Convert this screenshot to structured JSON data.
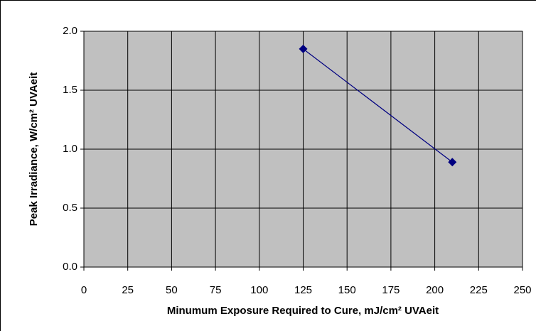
{
  "chart_data": {
    "type": "line",
    "xlabel": "Minumum Exposure Required to Cure, mJ/cm² UVAeit",
    "ylabel": "Peak Irradiance, W/cm² UVAeit",
    "x": [
      125,
      210
    ],
    "series": [
      {
        "color": "#000080",
        "values": [
          1.85,
          0.89
        ]
      }
    ],
    "xlim": [
      0,
      250
    ],
    "xticks": [
      0,
      25,
      50,
      75,
      100,
      125,
      150,
      175,
      200,
      225,
      250
    ],
    "ylim": [
      0,
      2.0
    ],
    "yticks": [
      {
        "value": 0,
        "label": "0.0"
      },
      0.5,
      {
        "value": 1.0,
        "label": "1.0"
      },
      1.5,
      {
        "value": 2.0,
        "label": "2.0"
      }
    ],
    "grid": true,
    "plot_background": "#c0c0c0"
  }
}
